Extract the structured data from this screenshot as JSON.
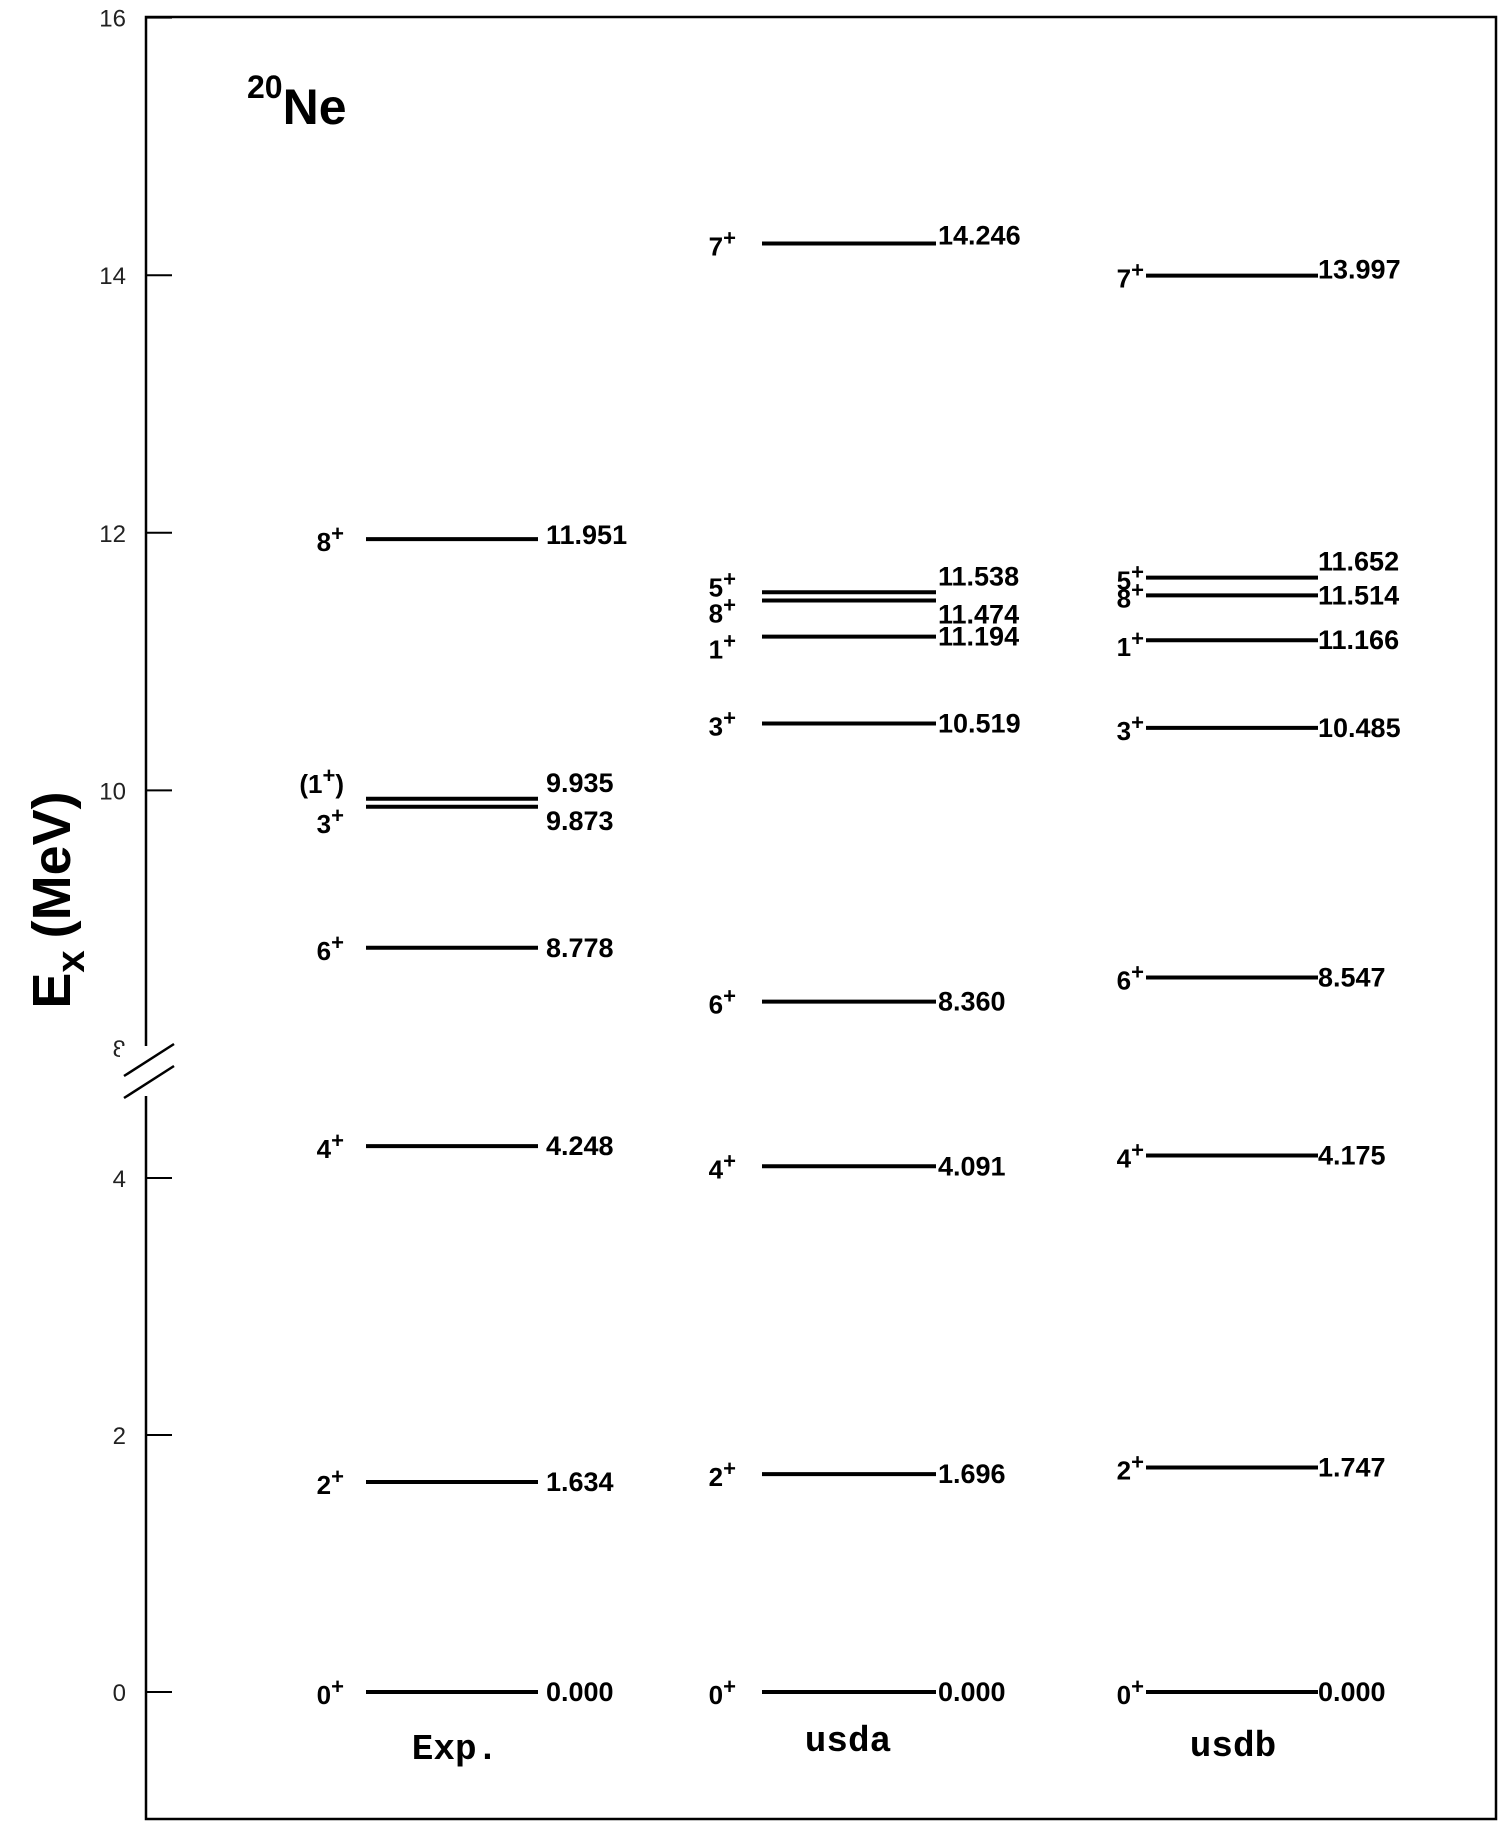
{
  "chart_data": {
    "type": "level-scheme",
    "title_mass": "20",
    "title_symbol": "Ne",
    "ylabel_main": "E",
    "ylabel_sub": "x",
    "ylabel_unit": "(MeV)",
    "yticks_upper": [
      "8",
      "10",
      "12",
      "14",
      "16"
    ],
    "yticks_lower": [
      "0",
      "2",
      "4"
    ],
    "axis_break": "between 4 and 8 MeV",
    "columns": [
      {
        "label": "Exp.",
        "levels": [
          {
            "energy": 0.0,
            "label": "0.000",
            "spin": "0",
            "parity": "+"
          },
          {
            "energy": 1.634,
            "label": "1.634",
            "spin": "2",
            "parity": "+"
          },
          {
            "energy": 4.248,
            "label": "4.248",
            "spin": "4",
            "parity": "+"
          },
          {
            "energy": 8.778,
            "label": "8.778",
            "spin": "6",
            "parity": "+"
          },
          {
            "energy": 9.873,
            "label": "9.873",
            "spin": "3",
            "parity": "+"
          },
          {
            "energy": 9.935,
            "label": "9.935",
            "spin": "(1",
            "parity": "+",
            "spin_suffix": ")"
          },
          {
            "energy": 11.951,
            "label": "11.951",
            "spin": "8",
            "parity": "+"
          }
        ]
      },
      {
        "label": "usda",
        "levels": [
          {
            "energy": 0.0,
            "label": "0.000",
            "spin": "0",
            "parity": "+"
          },
          {
            "energy": 1.696,
            "label": "1.696",
            "spin": "2",
            "parity": "+"
          },
          {
            "energy": 4.091,
            "label": "4.091",
            "spin": "4",
            "parity": "+"
          },
          {
            "energy": 8.36,
            "label": "8.360",
            "spin": "6",
            "parity": "+"
          },
          {
            "energy": 10.519,
            "label": "10.519",
            "spin": "3",
            "parity": "+"
          },
          {
            "energy": 11.194,
            "label": "11.194",
            "spin": "1",
            "parity": "+"
          },
          {
            "energy": 11.474,
            "label": "11.474",
            "spin": "8",
            "parity": "+"
          },
          {
            "energy": 11.538,
            "label": "11.538",
            "spin": "5",
            "parity": "+"
          },
          {
            "energy": 14.246,
            "label": "14.246",
            "spin": "7",
            "parity": "+"
          }
        ]
      },
      {
        "label": "usdb",
        "levels": [
          {
            "energy": 0.0,
            "label": "0.000",
            "spin": "0",
            "parity": "+"
          },
          {
            "energy": 1.747,
            "label": "1.747",
            "spin": "2",
            "parity": "+"
          },
          {
            "energy": 4.175,
            "label": "4.175",
            "spin": "4",
            "parity": "+"
          },
          {
            "energy": 8.547,
            "label": "8.547",
            "spin": "6",
            "parity": "+"
          },
          {
            "energy": 10.485,
            "label": "10.485",
            "spin": "3",
            "parity": "+"
          },
          {
            "energy": 11.166,
            "label": "11.166",
            "spin": "1",
            "parity": "+"
          },
          {
            "energy": 11.514,
            "label": "11.514",
            "spin": "8",
            "parity": "+"
          },
          {
            "energy": 11.652,
            "label": "11.652",
            "spin": "5",
            "parity": "+"
          },
          {
            "energy": 13.997,
            "label": "13.997",
            "spin": "7",
            "parity": "+"
          }
        ]
      }
    ]
  }
}
